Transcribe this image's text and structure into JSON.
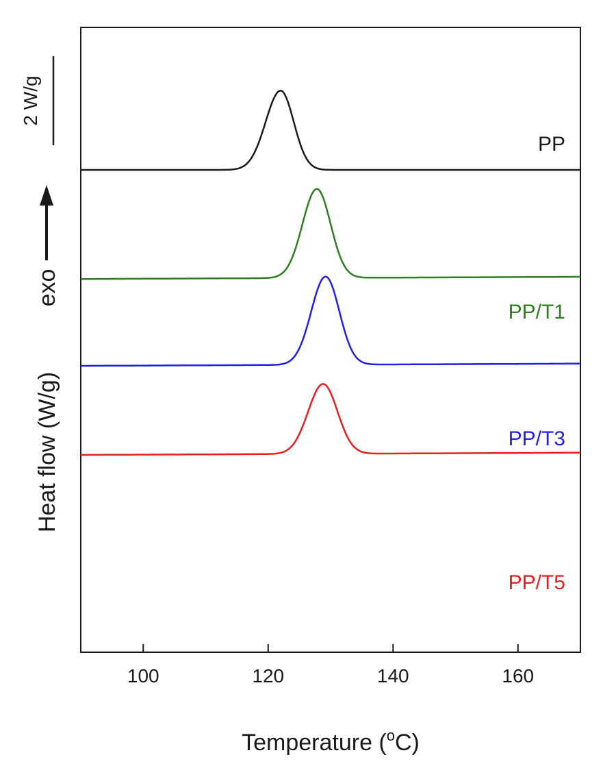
{
  "chart_data": {
    "type": "line",
    "subtype": "stacked DSC crystallization curves",
    "xlabel_main": "Temperature (",
    "xlabel_sup": "o",
    "xlabel_end": "C)",
    "ylabel": "Heat  flow (W/g)",
    "exo_label": "exo",
    "scale_bar_label": "2 W/g",
    "scale_bar_value": 2,
    "xlim": [
      90,
      170
    ],
    "x_ticks": [
      "100",
      "120",
      "140",
      "160"
    ],
    "grid": false,
    "legend": "inline labels at right end of each curve",
    "series": [
      {
        "name": "PP",
        "color": "#1a1a1a",
        "baseline_start": 0.0,
        "baseline_end": 0.0,
        "peak_x": 122,
        "peak_height": 1.78,
        "width_left": 2.4,
        "width_right": 2.1
      },
      {
        "name": "PP/T1",
        "color": "#2e7d1f",
        "baseline_start": -2.45,
        "baseline_end": -2.4,
        "peak_x": 127.8,
        "peak_height": 2.0,
        "width_left": 2.3,
        "width_right": 2.2
      },
      {
        "name": "PP/T3",
        "color": "#1f1fe6",
        "baseline_start": -4.4,
        "baseline_end": -4.35,
        "peak_x": 129.2,
        "peak_height": 1.98,
        "width_left": 2.3,
        "width_right": 2.2
      },
      {
        "name": "PP/T5",
        "color": "#e62020",
        "baseline_start": -6.4,
        "baseline_end": -6.35,
        "peak_x": 128.8,
        "peak_height": 1.57,
        "width_left": 2.4,
        "width_right": 2.3
      }
    ]
  }
}
